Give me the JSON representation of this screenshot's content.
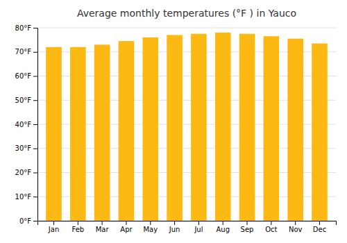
{
  "chart_data": {
    "type": "bar",
    "title": "Average monthly temperatures (°F ) in Yauco",
    "categories": [
      "Jan",
      "Feb",
      "Mar",
      "Apr",
      "May",
      "Jun",
      "Jul",
      "Aug",
      "Sep",
      "Oct",
      "Nov",
      "Dec"
    ],
    "values": [
      72,
      72,
      73,
      74.5,
      76,
      77,
      77.5,
      78,
      77.5,
      76.5,
      75.5,
      73.5
    ],
    "color": "#FDB913",
    "ylim": [
      0,
      80
    ],
    "yticks": [
      {
        "value": 0,
        "label": "0°F"
      },
      {
        "value": 10,
        "label": "10°F"
      },
      {
        "value": 20,
        "label": "20°F"
      },
      {
        "value": 30,
        "label": "30°F"
      },
      {
        "value": 40,
        "label": "40°F"
      },
      {
        "value": 50,
        "label": "50°F"
      },
      {
        "value": 60,
        "label": "60°F"
      },
      {
        "value": 70,
        "label": "70°F"
      },
      {
        "value": 80,
        "label": "80°F"
      }
    ],
    "grid": true
  }
}
